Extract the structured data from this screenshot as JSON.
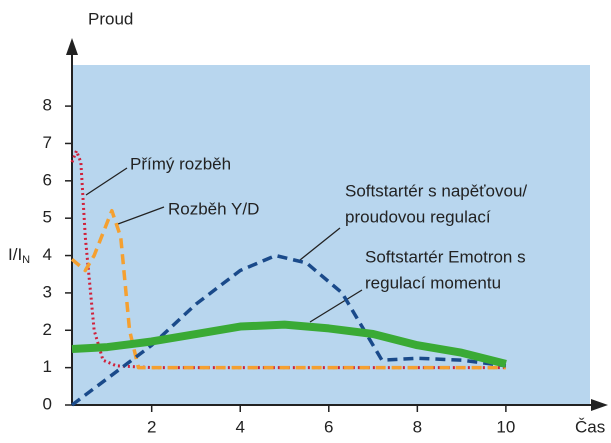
{
  "chart_data": {
    "type": "line",
    "ylabel": "I/I",
    "ylabel_sub": "N",
    "y_axis_title": "Proud",
    "xlabel": "Čas",
    "xlim": [
      0.2,
      11.9
    ],
    "ylim": [
      0,
      9.1
    ],
    "xticks": [
      2,
      4,
      6,
      8,
      10
    ],
    "yticks": [
      0,
      1,
      2,
      3,
      4,
      5,
      6,
      7,
      8
    ],
    "background": "#b8d6ee",
    "series": [
      {
        "name": "Přímý rozběh",
        "color": "#d0203a",
        "style": "dotted",
        "x": [
          0.2,
          0.3,
          0.4,
          0.5,
          0.7,
          0.9,
          1.2,
          2,
          10
        ],
        "values": [
          6.5,
          6.8,
          6.5,
          4.5,
          2,
          1.2,
          1.05,
          1,
          1
        ]
      },
      {
        "name": "Rozběh Y/D",
        "color": "#f5a030",
        "style": "dashed",
        "x": [
          0.2,
          0.5,
          0.7,
          1.1,
          1.3,
          1.5,
          1.7,
          10
        ],
        "values": [
          3.9,
          3.6,
          4,
          5.2,
          4.5,
          2,
          1,
          1
        ]
      },
      {
        "name": [
          "Softstartér s napěťovou/",
          "proudovou regulací"
        ],
        "color": "#1a4a8a",
        "style": "dashed",
        "x": [
          0.2,
          2,
          3,
          4,
          4.8,
          5.5,
          6.3,
          6.8,
          7.2,
          8,
          9,
          10
        ],
        "values": [
          0,
          1.6,
          2.7,
          3.6,
          4,
          3.8,
          3,
          2,
          1.2,
          1.25,
          1.2,
          1.05
        ]
      },
      {
        "name": [
          "Softstartér Emotron s",
          "regulací momentu"
        ],
        "color": "#3aaa35",
        "style": "solid",
        "x": [
          0.2,
          1,
          2,
          3,
          4,
          5,
          6,
          7,
          8,
          9,
          10
        ],
        "values": [
          1.5,
          1.55,
          1.7,
          1.9,
          2.1,
          2.15,
          2.05,
          1.9,
          1.6,
          1.4,
          1.1
        ]
      }
    ]
  }
}
